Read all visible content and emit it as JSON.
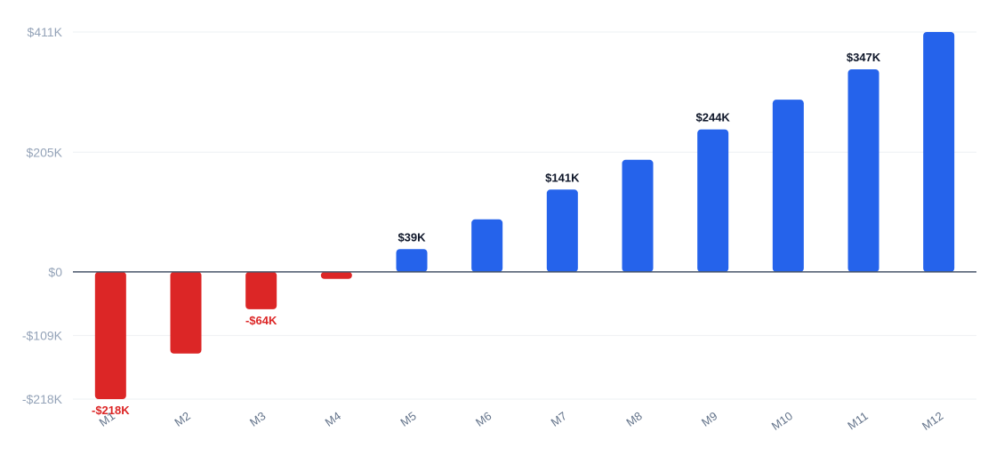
{
  "chart_data": {
    "type": "bar",
    "categories": [
      "M1",
      "M2",
      "M3",
      "M4",
      "M5",
      "M6",
      "M7",
      "M8",
      "M9",
      "M10",
      "M11",
      "M12"
    ],
    "values": [
      -218,
      -140,
      -64,
      -12,
      39,
      90,
      141,
      192,
      244,
      295,
      347,
      411
    ],
    "unit": "$K",
    "ylim": [
      -218,
      411
    ],
    "yticks": [
      {
        "value": 411,
        "label": "$411K"
      },
      {
        "value": 205,
        "label": "$205K"
      },
      {
        "value": 0,
        "label": "$0"
      },
      {
        "value": -109,
        "label": "-$109K"
      },
      {
        "value": -218,
        "label": "-$218K"
      }
    ],
    "data_labels": [
      {
        "index": 0,
        "label": "-$218K"
      },
      {
        "index": 2,
        "label": "-$64K"
      },
      {
        "index": 4,
        "label": "$39K"
      },
      {
        "index": 6,
        "label": "$141K"
      },
      {
        "index": 8,
        "label": "$244K"
      },
      {
        "index": 10,
        "label": "$347K"
      }
    ],
    "grid": true,
    "colors": {
      "positive": "#2563eb",
      "negative": "#dc2626",
      "zero_line": "#475569",
      "grid": "#eef0f3",
      "label_positive": "#0f172a",
      "label_negative": "#dc2626"
    }
  }
}
